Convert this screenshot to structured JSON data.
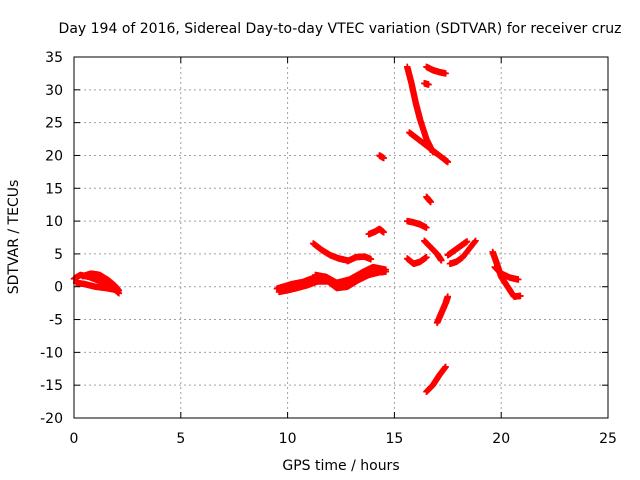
{
  "chart_data": {
    "type": "scatter",
    "title": "Day 194 of 2016, Sidereal Day-to-day VTEC variation (SDTVAR) for receiver cruz",
    "xlabel": "GPS time / hours",
    "ylabel": "SDTVAR / TECUs",
    "xlim": [
      0,
      25
    ],
    "ylim": [
      -20,
      35
    ],
    "xticks": [
      "0",
      "5",
      "10",
      "15",
      "20",
      "25"
    ],
    "yticks": [
      "-20",
      "-15",
      "-10",
      "-5",
      "0",
      "5",
      "10",
      "15",
      "20",
      "25",
      "30",
      "35"
    ],
    "grid": true,
    "marker": "plus",
    "color": "#ff0000",
    "tracks": [
      [
        [
          0.0,
          1.2
        ],
        [
          0.3,
          1.8
        ],
        [
          0.7,
          1.5
        ],
        [
          1.1,
          1.0
        ],
        [
          1.6,
          0.5
        ],
        [
          2.1,
          -1.0
        ]
      ],
      [
        [
          0.1,
          0.6
        ],
        [
          0.5,
          0.4
        ],
        [
          1.0,
          0.0
        ],
        [
          1.5,
          -0.2
        ],
        [
          2.0,
          -0.5
        ]
      ],
      [
        [
          0.4,
          1.6
        ],
        [
          0.8,
          2.0
        ],
        [
          1.2,
          1.8
        ],
        [
          1.6,
          1.0
        ],
        [
          1.9,
          0.2
        ],
        [
          2.1,
          -0.6
        ]
      ],
      [
        [
          9.5,
          -0.3
        ],
        [
          9.8,
          0.0
        ],
        [
          10.2,
          0.4
        ],
        [
          10.7,
          0.7
        ],
        [
          11.1,
          1.2
        ],
        [
          11.5,
          1.6
        ]
      ],
      [
        [
          9.6,
          -0.8
        ],
        [
          10.2,
          -0.4
        ],
        [
          10.9,
          0.2
        ],
        [
          11.4,
          0.8
        ],
        [
          11.9,
          0.8
        ],
        [
          12.3,
          -0.2
        ],
        [
          12.8,
          0.0
        ],
        [
          13.3,
          1.0
        ],
        [
          13.8,
          1.8
        ],
        [
          14.3,
          2.2
        ],
        [
          14.6,
          2.3
        ]
      ],
      [
        [
          11.3,
          1.8
        ],
        [
          11.8,
          1.5
        ],
        [
          12.3,
          0.6
        ],
        [
          12.9,
          1.1
        ],
        [
          13.5,
          2.2
        ],
        [
          14.0,
          3.0
        ],
        [
          14.6,
          2.6
        ]
      ],
      [
        [
          11.2,
          6.6
        ],
        [
          11.6,
          5.6
        ],
        [
          12.0,
          4.8
        ],
        [
          12.4,
          4.3
        ],
        [
          12.8,
          4.0
        ]
      ],
      [
        [
          12.8,
          3.9
        ],
        [
          13.2,
          4.5
        ],
        [
          13.6,
          4.6
        ],
        [
          13.9,
          4.2
        ]
      ],
      [
        [
          13.8,
          8.0
        ],
        [
          14.1,
          8.4
        ],
        [
          14.3,
          8.8
        ],
        [
          14.5,
          8.3
        ]
      ],
      [
        [
          14.3,
          20.0
        ],
        [
          14.5,
          19.6
        ]
      ],
      [
        [
          15.6,
          33.5
        ],
        [
          15.8,
          31.0
        ],
        [
          16.0,
          28.0
        ],
        [
          16.2,
          25.5
        ],
        [
          16.5,
          22.5
        ],
        [
          16.8,
          20.5
        ]
      ],
      [
        [
          15.7,
          23.5
        ],
        [
          16.1,
          22.5
        ],
        [
          16.5,
          21.5
        ],
        [
          16.9,
          20.5
        ],
        [
          17.3,
          19.5
        ],
        [
          17.5,
          19.0
        ]
      ],
      [
        [
          16.5,
          33.5
        ],
        [
          16.8,
          33.0
        ],
        [
          17.1,
          32.7
        ],
        [
          17.4,
          32.5
        ]
      ],
      [
        [
          16.4,
          31.0
        ],
        [
          16.6,
          30.8
        ]
      ],
      [
        [
          16.5,
          13.7
        ],
        [
          16.7,
          12.9
        ]
      ],
      [
        [
          15.6,
          10.0
        ],
        [
          15.9,
          9.8
        ],
        [
          16.2,
          9.5
        ],
        [
          16.5,
          9.0
        ]
      ],
      [
        [
          15.6,
          4.3
        ],
        [
          15.9,
          3.5
        ],
        [
          16.2,
          3.8
        ],
        [
          16.5,
          4.5
        ]
      ],
      [
        [
          16.4,
          7.0
        ],
        [
          16.7,
          6.0
        ],
        [
          17.0,
          5.0
        ],
        [
          17.2,
          4.0
        ]
      ],
      [
        [
          17.0,
          -5.5
        ],
        [
          17.2,
          -4.0
        ],
        [
          17.4,
          -2.5
        ],
        [
          17.5,
          -1.5
        ]
      ],
      [
        [
          16.5,
          -16.0
        ],
        [
          16.8,
          -15.0
        ],
        [
          17.1,
          -13.5
        ],
        [
          17.4,
          -12.2
        ]
      ],
      [
        [
          17.5,
          4.8
        ],
        [
          17.8,
          5.5
        ],
        [
          18.1,
          6.2
        ],
        [
          18.4,
          6.9
        ]
      ],
      [
        [
          17.6,
          3.5
        ],
        [
          17.9,
          3.8
        ],
        [
          18.2,
          4.5
        ],
        [
          18.8,
          7.0
        ]
      ],
      [
        [
          19.6,
          5.3
        ],
        [
          19.8,
          3.5
        ],
        [
          20.0,
          1.5
        ],
        [
          20.3,
          0.0
        ],
        [
          20.6,
          -1.5
        ],
        [
          20.9,
          -1.4
        ]
      ],
      [
        [
          19.7,
          3.0
        ],
        [
          20.0,
          2.0
        ],
        [
          20.4,
          1.4
        ],
        [
          20.8,
          1.1
        ]
      ]
    ]
  }
}
